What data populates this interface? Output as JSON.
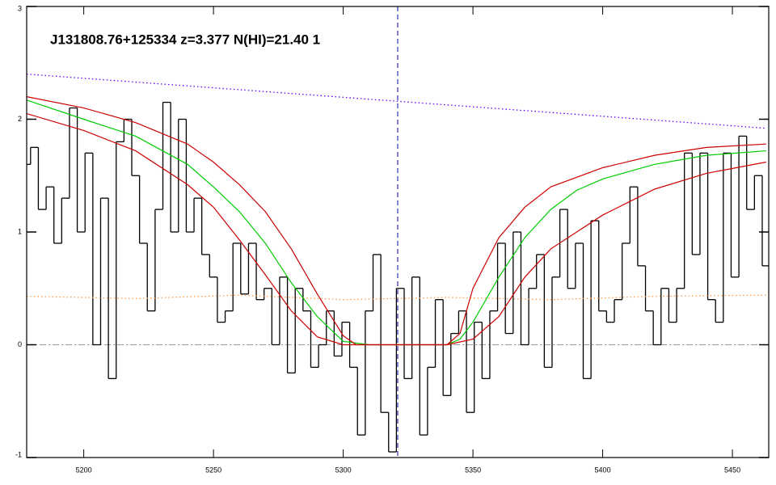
{
  "chart_data": {
    "type": "line",
    "title": "J131808.76+125334 z=3.377 N(HI)=21.40 1",
    "xlim": [
      5178,
      5464
    ],
    "ylim": [
      -1,
      3
    ],
    "xticks": [
      5200,
      5250,
      5300,
      5350,
      5400,
      5450
    ],
    "yticks": [
      -1,
      0,
      1,
      2,
      3
    ],
    "hline": 0,
    "hline_color": "#999999",
    "vline": 5321,
    "vline_color": "#0000aa",
    "series": [
      {
        "style": "step",
        "color": "#000000",
        "x": [
          5178,
          5181,
          5184,
          5187,
          5190,
          5193,
          5196,
          5199,
          5202,
          5205,
          5208,
          5211,
          5214,
          5217,
          5220,
          5223,
          5226,
          5229,
          5232,
          5235,
          5238,
          5241,
          5244,
          5247,
          5250,
          5253,
          5256,
          5259,
          5262,
          5265,
          5268,
          5271,
          5274,
          5277,
          5280,
          5283,
          5286,
          5289,
          5292,
          5295,
          5298,
          5301,
          5304,
          5307,
          5310,
          5313,
          5316,
          5319,
          5322,
          5325,
          5328,
          5331,
          5334,
          5337,
          5340,
          5343,
          5346,
          5349,
          5352,
          5355,
          5358,
          5361,
          5364,
          5367,
          5370,
          5373,
          5376,
          5379,
          5382,
          5385,
          5388,
          5391,
          5394,
          5397,
          5400,
          5403,
          5406,
          5409,
          5412,
          5415,
          5418,
          5421,
          5424,
          5427,
          5430,
          5433,
          5436,
          5439,
          5442,
          5445,
          5448,
          5451,
          5454,
          5457,
          5460,
          5463
        ],
        "values": [
          1.6,
          1.75,
          1.2,
          1.4,
          0.9,
          1.3,
          2.1,
          1.0,
          1.7,
          0.0,
          1.3,
          -0.3,
          1.8,
          2.0,
          1.5,
          0.9,
          0.3,
          1.2,
          2.15,
          1.0,
          2.0,
          1.0,
          1.3,
          0.8,
          0.6,
          0.2,
          0.3,
          0.9,
          0.45,
          0.9,
          0.4,
          0.5,
          0.0,
          0.6,
          -0.25,
          0.5,
          0.3,
          -0.2,
          0.0,
          0.3,
          -0.1,
          0.2,
          -0.2,
          -0.8,
          0.3,
          0.8,
          -0.6,
          -0.95,
          0.5,
          -0.3,
          0.6,
          -0.8,
          -0.2,
          0.4,
          -0.45,
          0.1,
          0.3,
          -0.6,
          0.2,
          -0.3,
          0.3,
          0.9,
          0.1,
          1.0,
          0.0,
          0.5,
          0.8,
          -0.2,
          0.6,
          1.2,
          0.5,
          0.9,
          -0.3,
          1.1,
          0.3,
          0.2,
          0.4,
          0.9,
          1.4,
          0.7,
          0.3,
          0.0,
          0.5,
          0.2,
          0.5,
          1.7,
          0.8,
          1.7,
          0.4,
          0.2,
          1.7,
          0.6,
          1.85,
          1.2,
          1.5,
          0.7
        ]
      },
      {
        "style": "dotted",
        "color": "#ff9944",
        "x": [
          5178,
          5220,
          5260,
          5300,
          5340,
          5380,
          5420,
          5463
        ],
        "values": [
          0.43,
          0.41,
          0.44,
          0.4,
          0.42,
          0.4,
          0.43,
          0.44
        ]
      },
      {
        "style": "dotted",
        "color": "#6600ff",
        "x": [
          5178,
          5463
        ],
        "values": [
          2.4,
          1.92
        ]
      },
      {
        "style": "solid",
        "color": "#00cc00",
        "x": [
          5178,
          5200,
          5220,
          5240,
          5250,
          5260,
          5270,
          5280,
          5290,
          5300,
          5310,
          5320,
          5330,
          5340,
          5345,
          5350,
          5360,
          5370,
          5380,
          5390,
          5400,
          5420,
          5440,
          5463
        ],
        "values": [
          2.17,
          2.0,
          1.85,
          1.6,
          1.4,
          1.18,
          0.9,
          0.55,
          0.25,
          0.03,
          0,
          0,
          0,
          0,
          0.05,
          0.2,
          0.6,
          0.95,
          1.2,
          1.37,
          1.47,
          1.6,
          1.68,
          1.72
        ]
      },
      {
        "style": "solid",
        "color": "#cc0000",
        "x": [
          5178,
          5200,
          5220,
          5240,
          5250,
          5260,
          5270,
          5280,
          5290,
          5300,
          5305,
          5340,
          5345,
          5350,
          5360,
          5370,
          5380,
          5400,
          5420,
          5440,
          5463
        ],
        "values": [
          2.2,
          2.1,
          1.97,
          1.78,
          1.62,
          1.42,
          1.18,
          0.85,
          0.45,
          0.08,
          0,
          0,
          0.1,
          0.5,
          0.95,
          1.22,
          1.4,
          1.57,
          1.68,
          1.75,
          1.78
        ]
      },
      {
        "style": "solid",
        "color": "#cc0000",
        "x": [
          5178,
          5200,
          5220,
          5240,
          5250,
          5260,
          5270,
          5280,
          5290,
          5300,
          5340,
          5350,
          5360,
          5370,
          5380,
          5400,
          5420,
          5440,
          5463
        ],
        "values": [
          2.05,
          1.9,
          1.72,
          1.42,
          1.22,
          0.93,
          0.62,
          0.3,
          0.07,
          0.0,
          0.0,
          0.05,
          0.25,
          0.6,
          0.85,
          1.15,
          1.38,
          1.52,
          1.62
        ]
      }
    ]
  }
}
